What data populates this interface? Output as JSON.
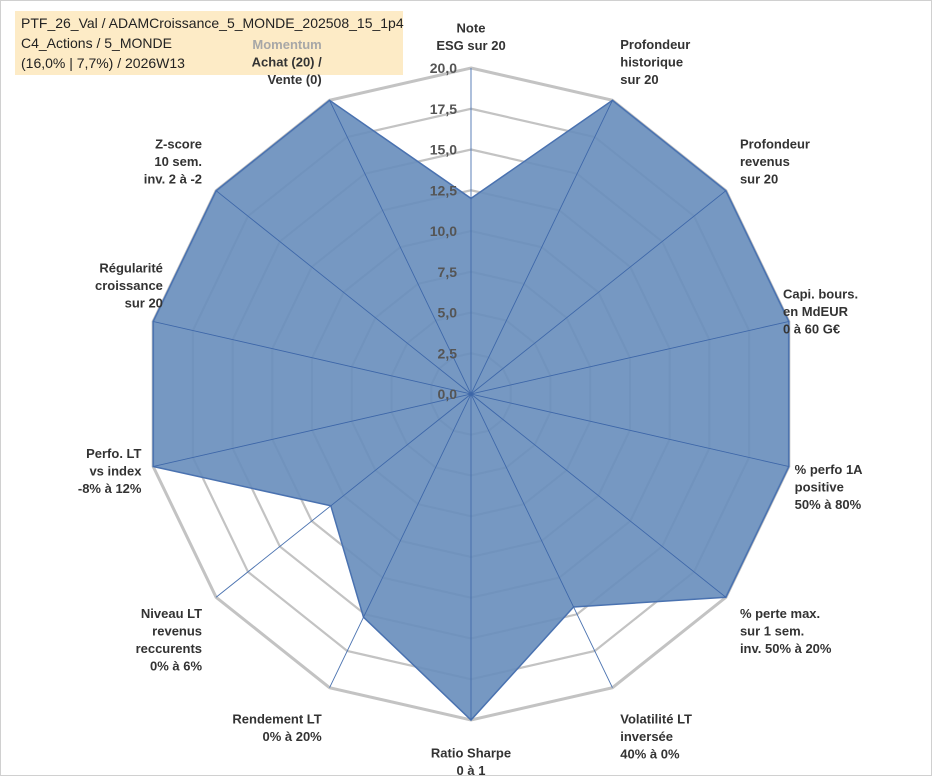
{
  "info": {
    "line1": "PTF_26_Val / ADAMCroissance_5_MONDE_202508_15_1p4",
    "line2": "C4_Actions / 5_MONDE",
    "line3": "(16,0% | 7,7%) / 2026W13"
  },
  "chart_data": {
    "type": "radar",
    "rmax": 20,
    "ticks": [
      "0,0",
      "2,5",
      "5,0",
      "7,5",
      "10,0",
      "12,5",
      "15,0",
      "17,5",
      "20,0"
    ],
    "tick_values": [
      0,
      2.5,
      5,
      7.5,
      10,
      12.5,
      15,
      17.5,
      20
    ],
    "fill_color": "#6a8fbd",
    "stroke_color": "#4a72b0",
    "grid_color": "#c3c3c3",
    "axes": [
      {
        "label": [
          "Note",
          "ESG sur 20"
        ],
        "value": 12
      },
      {
        "label": [
          "Profondeur",
          "historique",
          "sur 20"
        ],
        "value": 20
      },
      {
        "label": [
          "Profondeur",
          "revenus",
          "sur 20"
        ],
        "value": 20
      },
      {
        "label": [
          "Capi. bours.",
          "en MdEUR",
          "0 à 60 G€"
        ],
        "value": 20
      },
      {
        "label": [
          "% perfo 1A",
          "positive",
          "50% à 80%"
        ],
        "value": 20
      },
      {
        "label": [
          "% perte max.",
          "sur 1 sem.",
          "inv. 50% à 20%"
        ],
        "value": 20
      },
      {
        "label": [
          "Volatilité LT",
          "inversée",
          "40% à 0%"
        ],
        "value": 14.5
      },
      {
        "label": [
          "Ratio Sharpe",
          "0 à 1"
        ],
        "value": 20
      },
      {
        "label": [
          "Rendement LT",
          "0% à 20%"
        ],
        "value": 15.2
      },
      {
        "label": [
          "Niveau LT",
          "revenus",
          "reccurents",
          "0% à 6%"
        ],
        "value": 11
      },
      {
        "label": [
          "Perfo. LT",
          "vs index",
          "-8% à 12%"
        ],
        "value": 20
      },
      {
        "label": [
          "Régularité",
          "croissance",
          "sur 20"
        ],
        "value": 20
      },
      {
        "label": [
          "Z-score",
          "10 sem.",
          "inv. 2 à -2"
        ],
        "value": 20
      },
      {
        "label": [
          "Achat (20) /",
          "Vente (0)"
        ],
        "value": 20,
        "header": "Momentum"
      }
    ]
  }
}
